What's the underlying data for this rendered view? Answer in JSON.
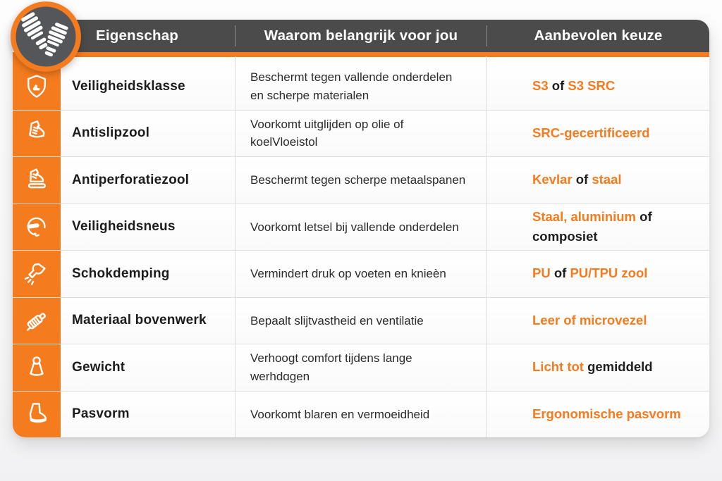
{
  "colors": {
    "accent": "#F47B1E",
    "header_bg": "#4B4B4B",
    "text_dark": "#1E1E1E",
    "divider": "#DCDCDC"
  },
  "logo": {
    "icon": "shoe-print-logo"
  },
  "header": {
    "columns": [
      "Eigenschap",
      "Waarom belangrijk voor jou",
      "Aanbevolen keuze"
    ]
  },
  "table": {
    "rows": [
      {
        "icon": "shield-boot-icon",
        "property": "Veiligheidsklasse",
        "why": "Beschermt tegen vallende onderdelen en scherpe materialen",
        "choice": [
          {
            "text": "S3",
            "accent": true
          },
          {
            "text": " of ",
            "accent": false
          },
          {
            "text": "S3 SRC",
            "accent": true
          }
        ]
      },
      {
        "icon": "safety-boot-icon",
        "property": "Antislipzool",
        "why": "Voorkomt uitglijden op olie of koelVloeistol",
        "choice": [
          {
            "text": "SRC-gecertificeerd",
            "accent": true
          }
        ]
      },
      {
        "icon": "boot-sole-icon",
        "property": "Antiperforatiezool",
        "why": "Beschermt tegen scherpe metaalspanen",
        "choice": [
          {
            "text": "Kevlar",
            "accent": true
          },
          {
            "text": " of ",
            "accent": false
          },
          {
            "text": "staal",
            "accent": true
          }
        ]
      },
      {
        "icon": "safety-toe-cap-icon",
        "property": "Veiligheidsneus",
        "why": "Voorkomt letsel bij vallende onderdelen",
        "choice": [
          {
            "text": "Staal, aluminium",
            "accent": true
          },
          {
            "text": " of composiet",
            "accent": false
          }
        ]
      },
      {
        "icon": "hand-impact-icon",
        "property": "Schokdemping",
        "why": "Vermindert druk op voeten en knieèn",
        "choice": [
          {
            "text": "PU",
            "accent": true
          },
          {
            "text": " of ",
            "accent": false
          },
          {
            "text": "PU/TPU zool",
            "accent": true
          }
        ]
      },
      {
        "icon": "material-roll-icon",
        "property": "Materiaal bovenwerk",
        "why": "Bepaalt slijtvastheid en ventilatie",
        "choice": [
          {
            "text": "Leer of microvezel",
            "accent": true
          }
        ]
      },
      {
        "icon": "weight-icon",
        "property": "Gewicht",
        "why": "Verhoogt comfort tijdens lange werhdɑgen",
        "choice": [
          {
            "text": "Licht tot",
            "accent": true
          },
          {
            "text": " gemiddeld",
            "accent": false
          }
        ]
      },
      {
        "icon": "boot-icon",
        "property": "Pasvorm",
        "why": "Voorkomt blaren en vermoeidheid",
        "choice": [
          {
            "text": "Ergonomische pasvorm",
            "accent": true
          }
        ]
      }
    ]
  }
}
